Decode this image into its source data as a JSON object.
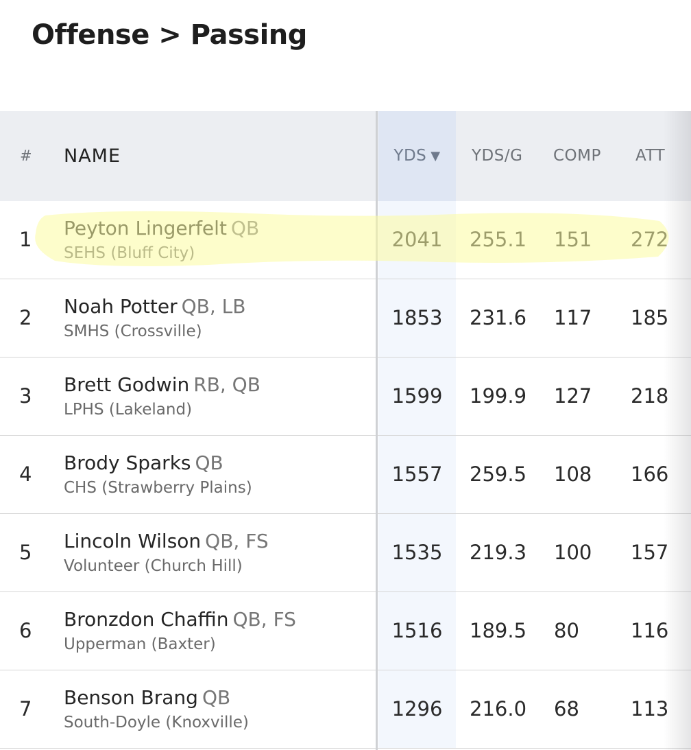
{
  "page": {
    "title": "Offense > Passing"
  },
  "table": {
    "headers": {
      "rank": "#",
      "name": "NAME",
      "yds": "YDS",
      "yds_per_game": "YDS/G",
      "comp": "COMP",
      "att": "ATT"
    },
    "sort_indicator": "▼",
    "rows": [
      {
        "rank": "1",
        "name": "Peyton Lingerfelt",
        "pos": "QB",
        "team": "SEHS (Bluff City)",
        "yds": "2041",
        "ydsg": "255.1",
        "comp": "151",
        "att": "272",
        "highlighted": true
      },
      {
        "rank": "2",
        "name": "Noah Potter",
        "pos": "QB, LB",
        "team": "SMHS (Crossville)",
        "yds": "1853",
        "ydsg": "231.6",
        "comp": "117",
        "att": "185"
      },
      {
        "rank": "3",
        "name": "Brett Godwin",
        "pos": "RB, QB",
        "team": "LPHS (Lakeland)",
        "yds": "1599",
        "ydsg": "199.9",
        "comp": "127",
        "att": "218"
      },
      {
        "rank": "4",
        "name": "Brody Sparks",
        "pos": "QB",
        "team": "CHS (Strawberry Plains)",
        "yds": "1557",
        "ydsg": "259.5",
        "comp": "108",
        "att": "166"
      },
      {
        "rank": "5",
        "name": "Lincoln Wilson",
        "pos": "QB, FS",
        "team": "Volunteer (Church Hill)",
        "yds": "1535",
        "ydsg": "219.3",
        "comp": "100",
        "att": "157"
      },
      {
        "rank": "6",
        "name": "Bronzdon Chaffin",
        "pos": "QB, FS",
        "team": "Upperman (Baxter)",
        "yds": "1516",
        "ydsg": "189.5",
        "comp": "80",
        "att": "116"
      },
      {
        "rank": "7",
        "name": "Benson Brang",
        "pos": "QB",
        "team": "South-Doyle (Knoxville)",
        "yds": "1296",
        "ydsg": "216.0",
        "comp": "68",
        "att": "113"
      }
    ]
  },
  "colors": {
    "header_bg": "#eceef2",
    "sorted_column_header_bg": "#dfe6f3",
    "sorted_column_bg": "#f3f7fd",
    "highlighter": "#fbfba0"
  }
}
